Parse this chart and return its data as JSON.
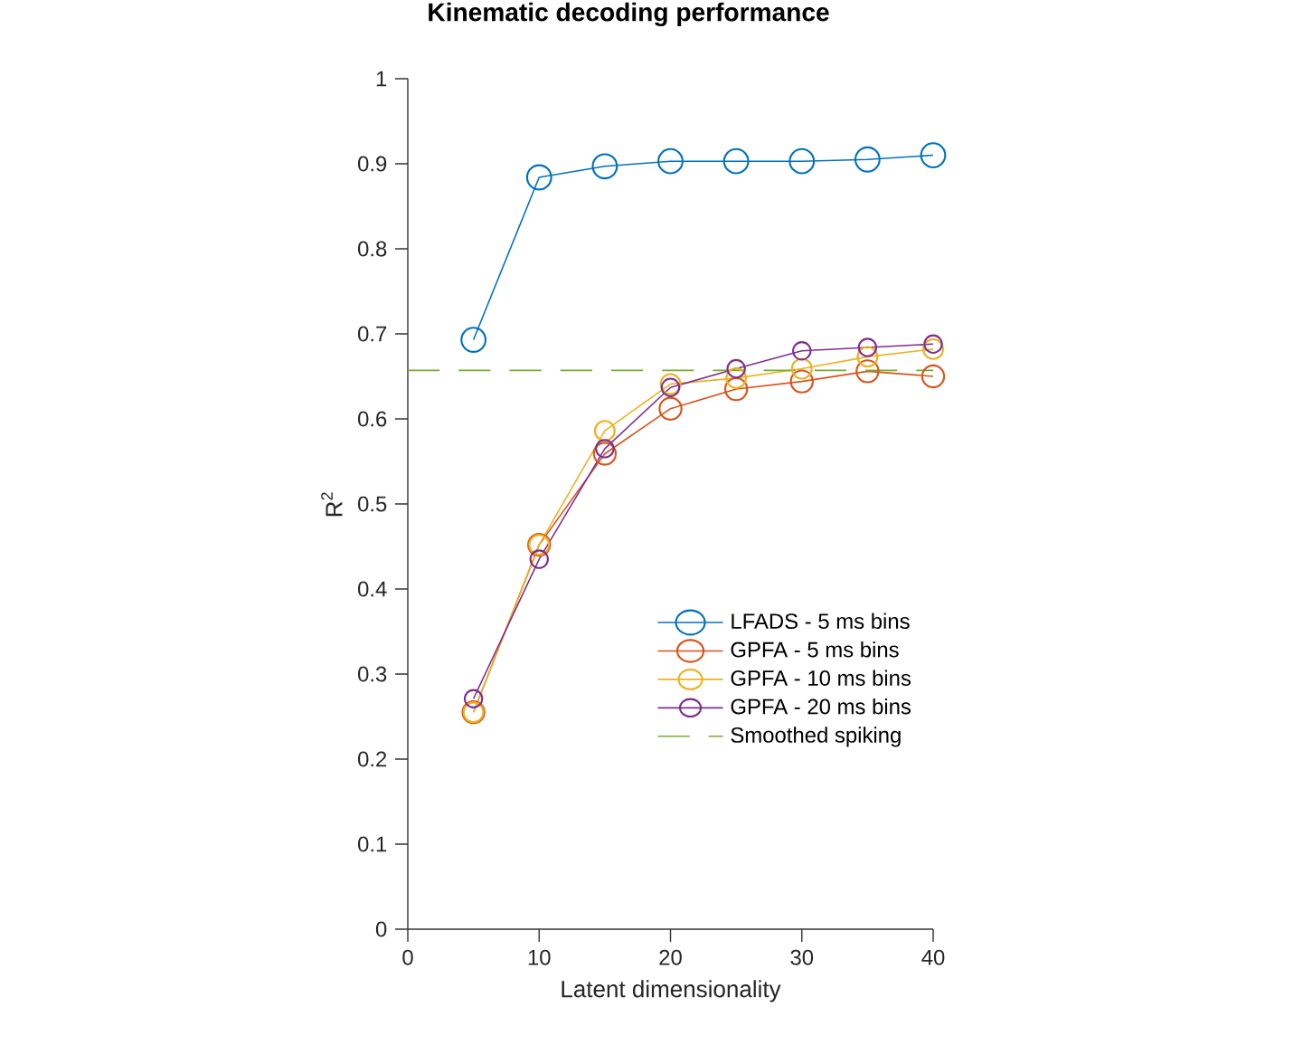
{
  "chart_data": {
    "type": "line",
    "title": "Kinematic decoding performance",
    "xlabel": "Latent dimensionality",
    "ylabel": "R$^{2}$",
    "x": [
      5,
      10,
      15,
      20,
      25,
      30,
      35,
      40
    ],
    "series": [
      {
        "name": "LFADS - 5 ms bins",
        "color": "#0072bd",
        "values": [
          0.693,
          0.884,
          0.897,
          0.903,
          0.903,
          0.903,
          0.905,
          0.91
        ]
      },
      {
        "name": "GPFA - 5 ms bins",
        "color": "#d95319",
        "values": [
          0.255,
          0.452,
          0.559,
          0.612,
          0.635,
          0.644,
          0.656,
          0.65
        ]
      },
      {
        "name": "GPFA - 10 ms bins",
        "color": "#edb120",
        "values": [
          0.255,
          0.452,
          0.586,
          0.641,
          0.648,
          0.659,
          0.673,
          0.682
        ]
      },
      {
        "name": "GPFA - 20 ms bins",
        "color": "#7e2f8e",
        "values": [
          0.271,
          0.435,
          0.565,
          0.637,
          0.659,
          0.68,
          0.684,
          0.688
        ]
      },
      {
        "name": "Smoothed spiking",
        "color": "#77ac30",
        "x": [
          0,
          40
        ],
        "values": [
          0.657,
          0.657
        ],
        "marker": "none",
        "line_style": "dashed"
      }
    ],
    "xlim": [
      0,
      40
    ],
    "ylim": [
      0,
      1
    ],
    "xticks": [
      0,
      10,
      20,
      30,
      40
    ],
    "yticks": [
      0,
      0.1,
      0.2,
      0.3,
      0.4,
      0.5,
      0.6,
      0.7,
      0.8,
      0.9,
      1
    ],
    "marker": "circle",
    "line_style": "solid",
    "legend": "bottom right",
    "grid": false
  }
}
